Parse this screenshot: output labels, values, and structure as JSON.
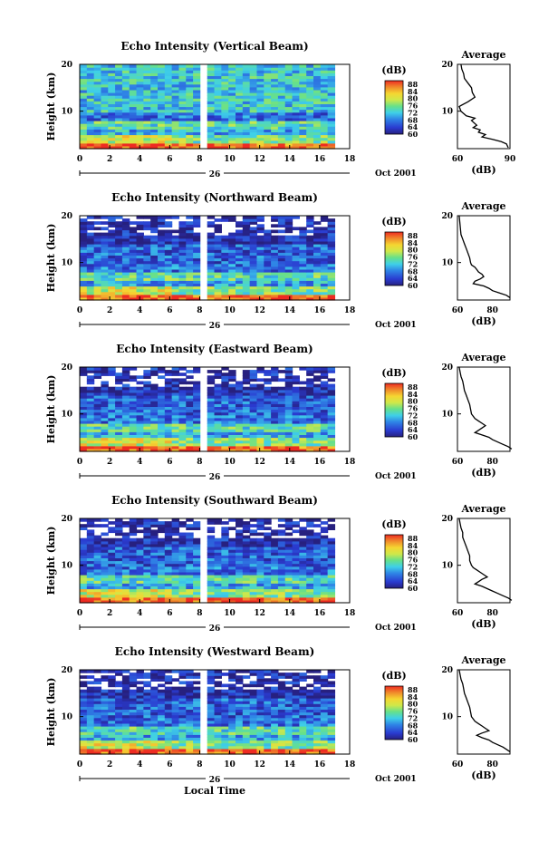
{
  "chart_data": [
    {
      "type": "heatmap",
      "title": "Echo Intensity (Vertical Beam)",
      "xlabel": "",
      "ylabel": "Height (km)",
      "xlim": [
        0,
        18
      ],
      "ylim": [
        2,
        20
      ],
      "x_ticks": [
        "0",
        "2",
        "4",
        "6",
        "8",
        "10",
        "12",
        "14",
        "16",
        "18"
      ],
      "y_ticks": [
        "10",
        "20"
      ],
      "date_label": "26",
      "month_label": "Oct 2001",
      "colorbar": {
        "unit": "(dB)",
        "min": 60,
        "max": 90,
        "ticks": [
          "60",
          "64",
          "68",
          "72",
          "76",
          "80",
          "84",
          "88"
        ]
      },
      "average_profile": {
        "title": "Average",
        "xlabel": "(dB)",
        "xlim": [
          60,
          90
        ],
        "x_ticks": [
          "60",
          "90"
        ],
        "y_ticks": [
          "10",
          "20"
        ],
        "points": [
          [
            62,
            20
          ],
          [
            62.5,
            19
          ],
          [
            63.5,
            18
          ],
          [
            64,
            17
          ],
          [
            66,
            16
          ],
          [
            68,
            15
          ],
          [
            68.5,
            14
          ],
          [
            70,
            13
          ],
          [
            66,
            12
          ],
          [
            61,
            11
          ],
          [
            62,
            10
          ],
          [
            65,
            9
          ],
          [
            70,
            8.5
          ],
          [
            68,
            8
          ],
          [
            71,
            7
          ],
          [
            69,
            6.5
          ],
          [
            73,
            6
          ],
          [
            72,
            5.5
          ],
          [
            76,
            5
          ],
          [
            74,
            4.5
          ],
          [
            80,
            4
          ],
          [
            85,
            3.5
          ],
          [
            88,
            3
          ],
          [
            89,
            2.2
          ]
        ]
      }
    },
    {
      "type": "heatmap",
      "title": "Echo Intensity (Northward Beam)",
      "xlabel": "",
      "ylabel": "Height (km)",
      "xlim": [
        0,
        18
      ],
      "ylim": [
        2,
        20
      ],
      "x_ticks": [
        "0",
        "2",
        "4",
        "6",
        "8",
        "10",
        "12",
        "14",
        "16",
        "18"
      ],
      "y_ticks": [
        "10",
        "20"
      ],
      "date_label": "26",
      "month_label": "Oct 2001",
      "colorbar": {
        "unit": "(dB)",
        "min": 60,
        "max": 90,
        "ticks": [
          "60",
          "64",
          "68",
          "72",
          "76",
          "80",
          "84",
          "88"
        ]
      },
      "average_profile": {
        "title": "Average",
        "xlabel": "(dB)",
        "xlim": [
          60,
          90
        ],
        "x_ticks": [
          "60",
          "80"
        ],
        "y_ticks": [
          "10",
          "20"
        ],
        "points": [
          [
            61,
            20
          ],
          [
            61.5,
            18
          ],
          [
            62,
            16
          ],
          [
            63,
            15
          ],
          [
            64,
            14
          ],
          [
            65,
            13
          ],
          [
            66,
            12
          ],
          [
            67,
            11
          ],
          [
            67.5,
            10
          ],
          [
            68,
            9.5
          ],
          [
            70,
            9
          ],
          [
            71,
            8.5
          ],
          [
            72,
            8
          ],
          [
            74,
            7.5
          ],
          [
            75,
            7
          ],
          [
            73,
            6.5
          ],
          [
            70,
            6
          ],
          [
            69,
            5.5
          ],
          [
            75,
            5
          ],
          [
            78,
            4.5
          ],
          [
            80,
            4
          ],
          [
            84,
            3.5
          ],
          [
            88,
            3
          ],
          [
            90,
            2.5
          ]
        ]
      }
    },
    {
      "type": "heatmap",
      "title": "Echo Intensity (Eastward Beam)",
      "xlabel": "",
      "ylabel": "Height (km)",
      "xlim": [
        0,
        18
      ],
      "ylim": [
        2,
        20
      ],
      "x_ticks": [
        "0",
        "2",
        "4",
        "6",
        "8",
        "10",
        "12",
        "14",
        "16",
        "18"
      ],
      "y_ticks": [
        "10",
        "20"
      ],
      "date_label": "26",
      "month_label": "Oct 2001",
      "colorbar": {
        "unit": "(dB)",
        "min": 60,
        "max": 90,
        "ticks": [
          "60",
          "64",
          "68",
          "72",
          "76",
          "80",
          "84",
          "88"
        ]
      },
      "average_profile": {
        "title": "Average",
        "xlabel": "(dB)",
        "xlim": [
          60,
          90
        ],
        "x_ticks": [
          "60",
          "80"
        ],
        "y_ticks": [
          "10",
          "20"
        ],
        "points": [
          [
            61,
            20
          ],
          [
            61.5,
            19
          ],
          [
            62,
            18
          ],
          [
            63,
            17
          ],
          [
            63.5,
            16
          ],
          [
            64,
            15
          ],
          [
            65,
            14
          ],
          [
            66,
            13
          ],
          [
            67,
            12
          ],
          [
            67.5,
            11
          ],
          [
            68,
            10
          ],
          [
            69,
            9.5
          ],
          [
            70,
            9
          ],
          [
            72,
            8.5
          ],
          [
            74,
            8
          ],
          [
            76,
            7.5
          ],
          [
            74,
            7
          ],
          [
            72,
            6.5
          ],
          [
            70,
            6
          ],
          [
            74,
            5.5
          ],
          [
            78,
            5
          ],
          [
            80,
            4.5
          ],
          [
            83,
            4
          ],
          [
            86,
            3.5
          ],
          [
            89,
            3
          ],
          [
            91,
            2.5
          ]
        ]
      }
    },
    {
      "type": "heatmap",
      "title": "Echo Intensity (Southward Beam)",
      "xlabel": "",
      "ylabel": "Height (km)",
      "xlim": [
        0,
        18
      ],
      "ylim": [
        2,
        20
      ],
      "x_ticks": [
        "0",
        "2",
        "4",
        "6",
        "8",
        "10",
        "12",
        "14",
        "16",
        "18"
      ],
      "y_ticks": [
        "10",
        "20"
      ],
      "date_label": "26",
      "month_label": "Oct 2001",
      "colorbar": {
        "unit": "(dB)",
        "min": 60,
        "max": 90,
        "ticks": [
          "60",
          "64",
          "68",
          "72",
          "76",
          "80",
          "84",
          "88"
        ]
      },
      "average_profile": {
        "title": "Average",
        "xlabel": "(dB)",
        "xlim": [
          60,
          90
        ],
        "x_ticks": [
          "60",
          "80"
        ],
        "y_ticks": [
          "10",
          "20"
        ],
        "points": [
          [
            61,
            20
          ],
          [
            61.5,
            19
          ],
          [
            62,
            18
          ],
          [
            63,
            17
          ],
          [
            63,
            16
          ],
          [
            64,
            15
          ],
          [
            65,
            14
          ],
          [
            66,
            13
          ],
          [
            67,
            12
          ],
          [
            67,
            11
          ],
          [
            68,
            10
          ],
          [
            69,
            9.5
          ],
          [
            71,
            9
          ],
          [
            73,
            8.5
          ],
          [
            75,
            8
          ],
          [
            77,
            7.5
          ],
          [
            74,
            7
          ],
          [
            72,
            6.5
          ],
          [
            70,
            6
          ],
          [
            74,
            5.5
          ],
          [
            77,
            5
          ],
          [
            80,
            4.5
          ],
          [
            83,
            4
          ],
          [
            86,
            3.5
          ],
          [
            89,
            3
          ],
          [
            91,
            2.5
          ]
        ]
      }
    },
    {
      "type": "heatmap",
      "title": "Echo Intensity (Westward Beam)",
      "xlabel": "Local Time",
      "ylabel": "Height (km)",
      "xlim": [
        0,
        18
      ],
      "ylim": [
        2,
        20
      ],
      "x_ticks": [
        "0",
        "2",
        "4",
        "6",
        "8",
        "10",
        "12",
        "14",
        "16",
        "18"
      ],
      "y_ticks": [
        "10",
        "20"
      ],
      "date_label": "26",
      "month_label": "Oct 2001",
      "colorbar": {
        "unit": "(dB)",
        "min": 60,
        "max": 90,
        "ticks": [
          "60",
          "64",
          "68",
          "72",
          "76",
          "80",
          "84",
          "88"
        ]
      },
      "average_profile": {
        "title": "Average",
        "xlabel": "(dB)",
        "xlim": [
          60,
          90
        ],
        "x_ticks": [
          "60",
          "80"
        ],
        "y_ticks": [
          "10",
          "20"
        ],
        "points": [
          [
            61,
            20
          ],
          [
            61.5,
            19
          ],
          [
            62,
            18
          ],
          [
            63,
            17
          ],
          [
            63.5,
            16
          ],
          [
            64,
            15
          ],
          [
            65,
            14
          ],
          [
            66,
            13
          ],
          [
            67,
            12
          ],
          [
            67.5,
            11
          ],
          [
            68,
            10
          ],
          [
            69,
            9.5
          ],
          [
            70,
            9
          ],
          [
            72,
            8.5
          ],
          [
            74,
            8
          ],
          [
            76,
            7.5
          ],
          [
            78,
            7
          ],
          [
            74,
            6.5
          ],
          [
            71,
            6
          ],
          [
            74,
            5.5
          ],
          [
            78,
            5
          ],
          [
            80,
            4.5
          ],
          [
            83,
            4
          ],
          [
            86,
            3.5
          ],
          [
            88,
            3
          ],
          [
            90,
            2.5
          ]
        ]
      }
    }
  ]
}
